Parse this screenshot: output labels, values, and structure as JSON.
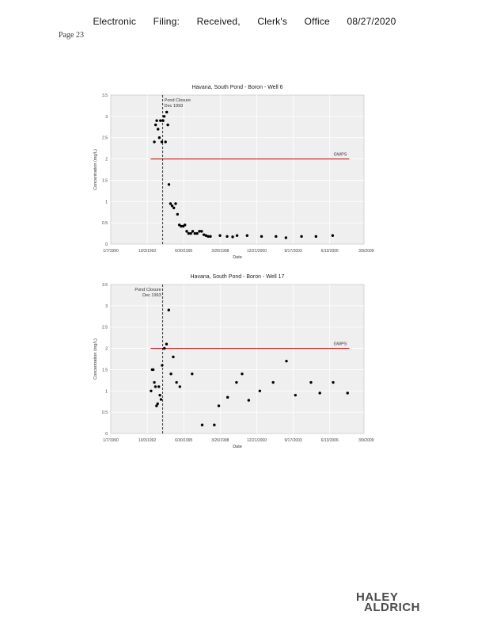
{
  "header": {
    "parts": [
      "Electronic",
      "Filing:",
      "Received,",
      "Clerk's",
      "Office",
      "08/27/2020"
    ],
    "page": "Page 23"
  },
  "logo": {
    "line1": "HALEY",
    "line2": "ALDRICH"
  },
  "colors": {
    "gwps_line": "#c00000",
    "plot_bg": "#efefef",
    "points": "#000000",
    "grid": "#ffffff"
  },
  "chart_data": [
    {
      "type": "scatter",
      "title": "Havana, South Pond - Boron - Well 6",
      "xlabel": "Date",
      "ylabel": "Concentration (mg/L)",
      "xlim": [
        "1990-01-07",
        "2009-01-07"
      ],
      "ylim": [
        0,
        3.5
      ],
      "xticks": [
        "1990-01-07",
        "1992-10-03",
        "1995-06-30",
        "1998-03-26",
        "2000-12-21",
        "2003-09-17",
        "2006-06-13",
        "2009-03-09"
      ],
      "xtick_labels": [
        "1/7/1990",
        "10/3/1992",
        "6/30/1995",
        "3/26/1998",
        "12/21/2000",
        "9/17/2003",
        "6/13/2006",
        "3/9/2009"
      ],
      "yticks": [
        0,
        0.5,
        1,
        1.5,
        2,
        2.5,
        3,
        3.5
      ],
      "ytick_labels": [
        "0",
        "0.5",
        "1",
        "1.5",
        "2",
        "2.5",
        "3",
        "3.5"
      ],
      "grid": true,
      "series": [
        {
          "x": [
            "1993-04-15",
            "1993-05-20",
            "1993-06-20",
            "1993-07-25",
            "1993-08-30",
            "1993-09-30",
            "1993-11-05",
            "1993-12-10",
            "1994-01-10",
            "1994-02-15",
            "1994-03-20",
            "1994-04-20",
            "1994-05-20",
            "1994-07-01",
            "1994-08-15",
            "1994-10-01",
            "1994-11-20",
            "1995-01-10",
            "1995-03-01",
            "1995-04-20",
            "1995-06-15",
            "1995-08-01",
            "1995-09-20",
            "1995-11-10",
            "1996-01-10",
            "1996-03-01",
            "1996-05-01",
            "1996-07-01",
            "1996-09-01",
            "1996-11-01",
            "1997-01-01",
            "1997-03-01",
            "1997-05-01",
            "1997-07-01",
            "1998-03-20",
            "1998-10-01",
            "1999-03-01",
            "1999-07-01",
            "2000-04-01",
            "2001-05-01",
            "2002-06-01",
            "2003-03-01",
            "2004-05-01",
            "2005-06-01",
            "2006-09-01"
          ],
          "y": [
            2.4,
            2.8,
            2.9,
            2.7,
            2.5,
            2.9,
            2.4,
            2.9,
            3.0,
            2.4,
            3.1,
            2.8,
            1.4,
            0.95,
            0.9,
            0.85,
            0.95,
            0.7,
            0.45,
            0.42,
            0.42,
            0.45,
            0.3,
            0.25,
            0.25,
            0.3,
            0.25,
            0.25,
            0.3,
            0.3,
            0.22,
            0.2,
            0.18,
            0.18,
            0.2,
            0.18,
            0.17,
            0.2,
            0.2,
            0.18,
            0.18,
            0.15,
            0.18,
            0.18,
            0.2
          ]
        }
      ],
      "hline": {
        "y": 2,
        "label": "GWPS"
      },
      "vline": {
        "x": "1993-12-01",
        "label": [
          "Pond Closure",
          "Dec 1993"
        ]
      }
    },
    {
      "type": "scatter",
      "title": "Havana, South Pond - Boron - Well 17",
      "xlabel": "Date",
      "ylabel": "Concentration (mg/L)",
      "xlim": [
        "1990-01-07",
        "2009-01-07"
      ],
      "ylim": [
        0,
        3.5
      ],
      "xticks": [
        "1990-01-07",
        "1992-10-03",
        "1995-06-30",
        "1998-03-26",
        "2000-12-21",
        "2003-09-17",
        "2006-06-13",
        "2009-03-09"
      ],
      "xtick_labels": [
        "1/7/1990",
        "10/3/1992",
        "6/30/1995",
        "3/26/1998",
        "12/21/2000",
        "9/17/2003",
        "6/13/2006",
        "3/9/2009"
      ],
      "yticks": [
        0,
        0.5,
        1,
        1.5,
        2,
        2.5,
        3,
        3.5
      ],
      "ytick_labels": [
        "0",
        "0.5",
        "1",
        "1.5",
        "2",
        "2.5",
        "3",
        "3.5"
      ],
      "grid": true,
      "series": [
        {
          "x": [
            "1993-01-15",
            "1993-02-15",
            "1993-03-15",
            "1993-04-15",
            "1993-05-15",
            "1993-06-15",
            "1993-07-15",
            "1993-08-15",
            "1993-09-15",
            "1993-10-15",
            "1993-11-15",
            "1994-01-15",
            "1994-03-15",
            "1994-05-15",
            "1994-07-15",
            "1994-09-15",
            "1994-12-15",
            "1995-03-15",
            "1996-02-15",
            "1996-11-15",
            "1997-10-15",
            "1998-02-15",
            "1998-10-15",
            "1999-06-15",
            "1999-11-15",
            "2000-05-15",
            "2001-03-15",
            "2002-03-15",
            "2003-03-15",
            "2003-11-15",
            "2005-01-15",
            "2005-09-15",
            "2006-09-15",
            "2007-10-15"
          ],
          "y": [
            1.0,
            1.5,
            1.5,
            1.2,
            1.1,
            0.65,
            0.7,
            1.1,
            0.9,
            0.8,
            1.6,
            2.0,
            2.1,
            2.9,
            1.4,
            1.8,
            1.2,
            1.1,
            1.4,
            0.2,
            0.2,
            0.65,
            0.85,
            1.2,
            1.4,
            0.78,
            1.0,
            1.2,
            1.7,
            0.9,
            1.2,
            0.95,
            1.2,
            0.95
          ]
        }
      ],
      "hline": {
        "y": 2,
        "label": "GWPS"
      },
      "vline": {
        "x": "1993-12-01",
        "label": [
          "Pond Closure",
          "Dec 1993"
        ]
      }
    }
  ]
}
